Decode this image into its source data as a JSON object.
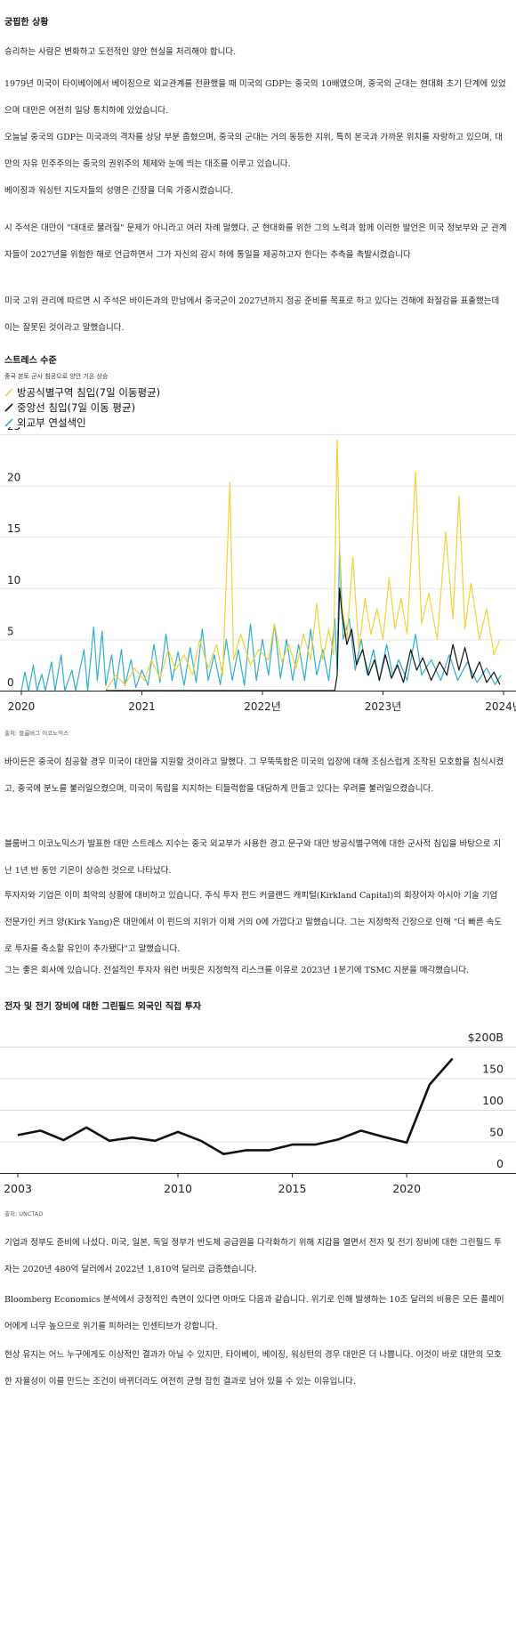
{
  "sections": {
    "s1_heading": "궁핍한 상황",
    "s2_heading": "스트레스 수준",
    "s3_heading": "전자 및 전기 장비에 대한 그린필드 외국인 직접 투자"
  },
  "paragraphs": {
    "p1": "승리하는 사람은 변화하고 도전적인 양안 현실을 처리해야 합니다.",
    "p2": "1979년 미국이 타이베이에서 베이징으로 외교관계를 전환했을 때 미국의 GDP는 중국의 10배였으며, 중국의 군대는 현대화 초기 단계에 있었으며 대만은 여전히 일당 통치하에 있었습니다.",
    "p3": "오늘날 중국의 GDP는 미국과의 격차를 상당 부분 좁혔으며, 중국의 군대는 거의 동등한 지위, 특히 본국과 가까운 위치를 자랑하고 있으며, 대만의 자유 민주주의는 중국의 권위주의 체제와 눈에 띄는 대조를 이루고 있습니다.",
    "p4": "베이징과 워싱턴 지도자들의 성명은 긴장을 더욱 가중시켰습니다.",
    "p5": "시 주석은 대만이 \"대대로 물려질\" 문제가 아니라고 여러 차례 말했다. 군 현대화를 위한 그의 노력과 함께 이러한 발언은 미국 정보부와 군 관계자들이 2027년을 위험한 해로 언급하면서 그가 자신의 감시 하에 통일을 제공하고자 한다는 추측을 촉발시켰습니다",
    "p6": "미국 고위 관리에 따르면 시 주석은 바이든과의 만남에서 중국군이 2027년까지 점공 준비를 목표로 하고 있다는 견해에 좌절감을 표출했는데 이는 잘못된 것이라고 말했습니다.",
    "p7": "바이든은 중국이 침공할 경우 미국이 대만을 지원할 것이라고 말했다. 그 무뚝뚝함은 미국의 입장에 대해 조심스럽게 조작된 모호함을 침식시켰고, 중국에 분노를 불러일으켰으며, 미국이 독립을 지지하는 티들럭함을 대담하게 만들고 있다는 우려를 불러일으켰습니다.",
    "p8": "블룸버그 이코노믹스가 발표한 대만 스트레스 지수는 중국 외교부가 사용한 경고 문구와 대만 방공식별구역에 대한 군사적 침입을 바탕으로 지난 1년 반 동안 기온이 상승한 것으로 나타났다.",
    "p9": "투자자와 기업은 이미 최악의 상황에 대비하고 있습니다. 주식 투자 펀드 커클랜드 캐피털(Kirkland Capital)의 회장이자 아시아 기술 기업 전문가인 커크 양(Kirk Yang)은 대만에서 이 펀드의 지위가 이제 거의 0에 가깝다고 말했습니다. 그는 지정학적 긴장으로 인해 \"더 빠른 속도로 투자를 축소할 유인이 추가됐다\"고 말했습니다.",
    "p10": "그는 좋은 회사에 있습니다. 전설적인 투자자 워런 버핏은 지정학적 리스크를 이유로 2023년 1분기에 TSMC 지분을 매각했습니다.",
    "p11": "기업과 정부도 준비에 나섰다. 미국, 일본, 독일 정부가 반도체 공급원을 다각화하기 위해 지갑을 열면서 전자 및 전기 장비에 대한 그린필드 투자는 2020년 480억 달러에서 2022년 1,810억 달러로 급증했습니다.",
    "p12": "Bloomberg Economics 분석에서 긍정적인 측면이 있다면 아마도 다음과 같습니다. 위기로 인해 발생하는 10조 달러의 비용은 모든 플레이어에게 너무 높으므로 위기를 피하려는 인센티브가 강합니다.",
    "p13": "현상 유지는 어느 누구에게도 이상적인 결과가 아닐 수 있지만, 타이베이, 베이징, 워싱턴의 경우 대안은 더 나쁩니다. 이것이 바로 대만의 모호한 자율성이 이를 만드는 조건이 바뀌더라도 여전히 균형 잡힌 결과로 남아 있을 수 있는 이유입니다."
  },
  "charts_text": {
    "stress_subtitle": "중국 본토 군사 침공으로 양안 기온 상승",
    "stress_source": "출처: 블룸버그 이코노믹스",
    "legend": [
      "방공식별구역 침입(7일 이동평균)",
      "중앙선 침입(7일 이동 평균)",
      "외교부 연설색인"
    ],
    "fdi_source": "출처: UNCTAD"
  },
  "colors": {
    "adiz": "#f0d23c",
    "median": "#111111",
    "mfa": "#2fb0c8",
    "fdi_line": "#111111",
    "gridline": "#cccccc"
  },
  "chart_data": [
    {
      "type": "line",
      "title": "스트레스 수준",
      "subtitle": "중국 본토 군사 침공으로 양안 기온 상승",
      "x_range": [
        "2020-01",
        "2024-01"
      ],
      "x_ticks": [
        "2020",
        "2021",
        "2022년",
        "2023년",
        "2024년"
      ],
      "ylim": [
        0,
        25
      ],
      "y_ticks": [
        "0",
        "5",
        "10",
        "15",
        "20",
        "25"
      ],
      "legend_position": "top-left",
      "series": [
        {
          "name": "방공식별구역 침입(7일 이동평균)",
          "color": "#f0d23c",
          "points": [
            [
              2020.7,
              0.0
            ],
            [
              2020.78,
              1.5
            ],
            [
              2020.86,
              0.6
            ],
            [
              2020.94,
              2.2
            ],
            [
              2021.02,
              1.0
            ],
            [
              2021.08,
              3.0
            ],
            [
              2021.15,
              1.2
            ],
            [
              2021.22,
              4.0
            ],
            [
              2021.28,
              2.0
            ],
            [
              2021.35,
              3.5
            ],
            [
              2021.42,
              1.5
            ],
            [
              2021.48,
              5.0
            ],
            [
              2021.55,
              2.2
            ],
            [
              2021.62,
              4.5
            ],
            [
              2021.67,
              1.5
            ],
            [
              2021.73,
              20.3
            ],
            [
              2021.76,
              3.0
            ],
            [
              2021.82,
              5.5
            ],
            [
              2021.9,
              2.5
            ],
            [
              2021.97,
              4.0
            ],
            [
              2022.05,
              3.0
            ],
            [
              2022.1,
              6.5
            ],
            [
              2022.16,
              2.8
            ],
            [
              2022.22,
              4.5
            ],
            [
              2022.28,
              2.2
            ],
            [
              2022.34,
              5.5
            ],
            [
              2022.4,
              3.0
            ],
            [
              2022.45,
              8.5
            ],
            [
              2022.5,
              3.0
            ],
            [
              2022.55,
              6.0
            ],
            [
              2022.59,
              3.5
            ],
            [
              2022.62,
              24.5
            ],
            [
              2022.65,
              9.0
            ],
            [
              2022.7,
              5.0
            ],
            [
              2022.75,
              13.0
            ],
            [
              2022.8,
              4.0
            ],
            [
              2022.85,
              9.0
            ],
            [
              2022.9,
              5.5
            ],
            [
              2022.95,
              8.0
            ],
            [
              2023.0,
              5.0
            ],
            [
              2023.05,
              11.0
            ],
            [
              2023.1,
              6.0
            ],
            [
              2023.15,
              9.0
            ],
            [
              2023.2,
              5.5
            ],
            [
              2023.27,
              21.3
            ],
            [
              2023.32,
              6.5
            ],
            [
              2023.38,
              9.5
            ],
            [
              2023.45,
              5.0
            ],
            [
              2023.52,
              15.5
            ],
            [
              2023.58,
              7.0
            ],
            [
              2023.63,
              19.0
            ],
            [
              2023.68,
              6.0
            ],
            [
              2023.73,
              10.5
            ],
            [
              2023.8,
              5.0
            ],
            [
              2023.86,
              8.0
            ],
            [
              2023.92,
              3.5
            ],
            [
              2023.97,
              5.0
            ]
          ]
        },
        {
          "name": "중앙선 침입(7일 이동 평균)",
          "color": "#111111",
          "points": [
            [
              2020.7,
              0.0
            ],
            [
              2022.6,
              0.0
            ],
            [
              2022.62,
              1.5
            ],
            [
              2022.64,
              10.0
            ],
            [
              2022.66,
              7.5
            ],
            [
              2022.7,
              4.5
            ],
            [
              2022.74,
              6.0
            ],
            [
              2022.78,
              2.5
            ],
            [
              2022.83,
              4.0
            ],
            [
              2022.88,
              1.5
            ],
            [
              2022.93,
              3.0
            ],
            [
              2022.97,
              1.0
            ],
            [
              2023.02,
              3.5
            ],
            [
              2023.07,
              1.2
            ],
            [
              2023.12,
              2.5
            ],
            [
              2023.17,
              0.8
            ],
            [
              2023.23,
              4.0
            ],
            [
              2023.28,
              2.0
            ],
            [
              2023.33,
              3.2
            ],
            [
              2023.4,
              1.0
            ],
            [
              2023.47,
              2.8
            ],
            [
              2023.53,
              1.5
            ],
            [
              2023.58,
              4.5
            ],
            [
              2023.63,
              2.0
            ],
            [
              2023.68,
              4.2
            ],
            [
              2023.74,
              1.2
            ],
            [
              2023.8,
              2.8
            ],
            [
              2023.86,
              0.8
            ],
            [
              2023.92,
              1.8
            ],
            [
              2023.97,
              0.6
            ]
          ]
        },
        {
          "name": "외교부 연설색인",
          "color": "#2fb0c8",
          "points": [
            [
              2020.0,
              0.0
            ],
            [
              2020.03,
              1.8
            ],
            [
              2020.06,
              0.0
            ],
            [
              2020.1,
              2.5
            ],
            [
              2020.13,
              0.0
            ],
            [
              2020.17,
              1.6
            ],
            [
              2020.2,
              0.0
            ],
            [
              2020.25,
              2.8
            ],
            [
              2020.28,
              0.0
            ],
            [
              2020.33,
              3.5
            ],
            [
              2020.36,
              0.0
            ],
            [
              2020.42,
              2.0
            ],
            [
              2020.45,
              0.0
            ],
            [
              2020.52,
              4.0
            ],
            [
              2020.55,
              0.0
            ],
            [
              2020.6,
              6.2
            ],
            [
              2020.63,
              1.0
            ],
            [
              2020.67,
              5.8
            ],
            [
              2020.7,
              0.5
            ],
            [
              2020.75,
              3.5
            ],
            [
              2020.78,
              0.2
            ],
            [
              2020.83,
              4.0
            ],
            [
              2020.86,
              0.5
            ],
            [
              2020.91,
              3.0
            ],
            [
              2020.95,
              0.3
            ],
            [
              2021.0,
              2.0
            ],
            [
              2021.05,
              0.5
            ],
            [
              2021.1,
              4.5
            ],
            [
              2021.15,
              0.8
            ],
            [
              2021.2,
              5.5
            ],
            [
              2021.25,
              1.0
            ],
            [
              2021.3,
              3.8
            ],
            [
              2021.35,
              0.5
            ],
            [
              2021.4,
              4.2
            ],
            [
              2021.45,
              0.8
            ],
            [
              2021.5,
              6.0
            ],
            [
              2021.55,
              1.0
            ],
            [
              2021.6,
              3.5
            ],
            [
              2021.65,
              0.6
            ],
            [
              2021.7,
              5.0
            ],
            [
              2021.75,
              1.0
            ],
            [
              2021.8,
              4.0
            ],
            [
              2021.85,
              0.5
            ],
            [
              2021.9,
              6.5
            ],
            [
              2021.95,
              1.0
            ],
            [
              2022.0,
              5.0
            ],
            [
              2022.05,
              1.5
            ],
            [
              2022.1,
              6.5
            ],
            [
              2022.15,
              1.2
            ],
            [
              2022.2,
              5.0
            ],
            [
              2022.25,
              1.0
            ],
            [
              2022.3,
              4.5
            ],
            [
              2022.35,
              1.0
            ],
            [
              2022.4,
              6.0
            ],
            [
              2022.45,
              1.5
            ],
            [
              2022.5,
              4.0
            ],
            [
              2022.55,
              1.0
            ],
            [
              2022.6,
              7.0
            ],
            [
              2022.62,
              2.0
            ],
            [
              2022.64,
              14.0
            ],
            [
              2022.67,
              5.0
            ],
            [
              2022.72,
              7.0
            ],
            [
              2022.77,
              2.0
            ],
            [
              2022.82,
              5.0
            ],
            [
              2022.87,
              1.5
            ],
            [
              2022.92,
              4.0
            ],
            [
              2022.97,
              1.0
            ],
            [
              2023.03,
              4.5
            ],
            [
              2023.08,
              1.5
            ],
            [
              2023.13,
              3.0
            ],
            [
              2023.2,
              1.0
            ],
            [
              2023.27,
              5.5
            ],
            [
              2023.32,
              1.5
            ],
            [
              2023.4,
              3.0
            ],
            [
              2023.48,
              1.0
            ],
            [
              2023.55,
              3.5
            ],
            [
              2023.62,
              1.0
            ],
            [
              2023.7,
              2.8
            ],
            [
              2023.78,
              0.8
            ],
            [
              2023.86,
              2.2
            ],
            [
              2023.93,
              0.6
            ],
            [
              2023.98,
              1.5
            ]
          ]
        }
      ]
    },
    {
      "type": "line",
      "title": "전자 및 전기 장비에 대한 그린필드 외국인 직접 투자",
      "x_ticks": [
        "2003",
        "2010",
        "2015",
        "2020"
      ],
      "y_ticks": [
        "0",
        "50",
        "100",
        "150",
        "$200B"
      ],
      "ylim": [
        0,
        200
      ],
      "xlim": [
        2003,
        2024
      ],
      "series": [
        {
          "x": [
            2003,
            2004,
            2005,
            2006,
            2007,
            2008,
            2009,
            2010,
            2011,
            2012,
            2013,
            2014,
            2015,
            2016,
            2017,
            2018,
            2019,
            2020,
            2021,
            2022
          ],
          "values": [
            60,
            67,
            52,
            72,
            51,
            56,
            51,
            65,
            51,
            30,
            36,
            36,
            45,
            45,
            53,
            67,
            57,
            48,
            140,
            181
          ]
        }
      ]
    }
  ]
}
